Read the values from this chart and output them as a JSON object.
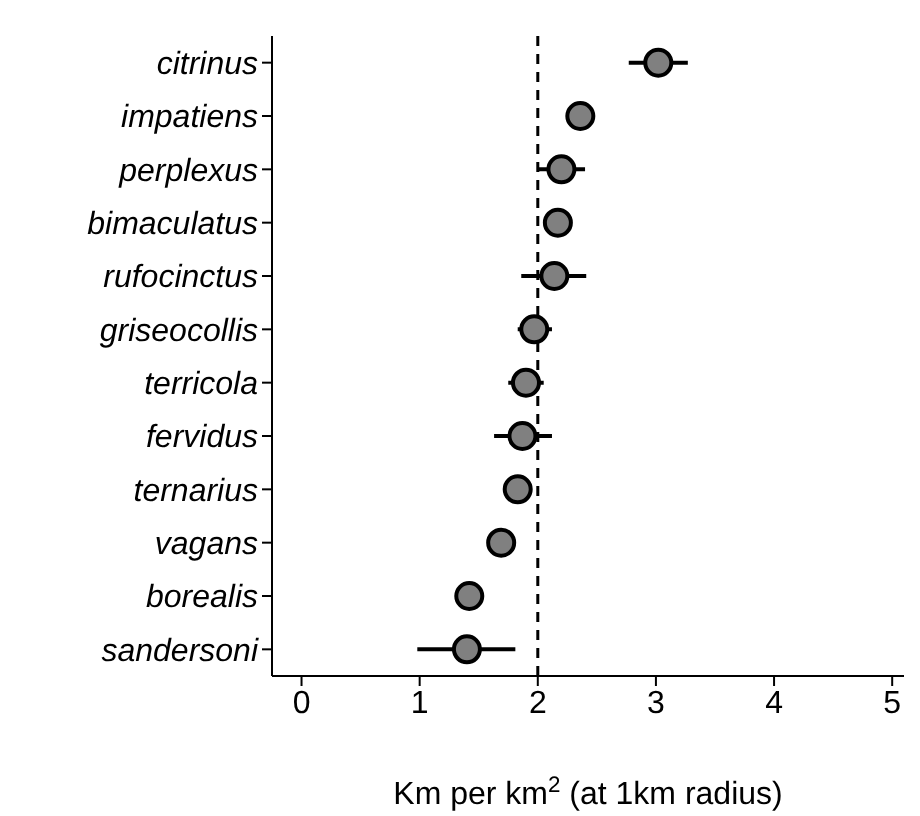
{
  "chart_data": {
    "type": "scatter",
    "orientation": "horizontal",
    "xlabel": "Km per km$^{2}$ (at 1km radius)",
    "categories": [
      "citrinus",
      "impatiens",
      "perplexus",
      "bimaculatus",
      "rufocinctus",
      "griseocollis",
      "terricola",
      "fervidus",
      "ternarius",
      "vagans",
      "borealis",
      "sandersoni"
    ],
    "values": [
      3.02,
      2.36,
      2.2,
      2.17,
      2.14,
      1.97,
      1.9,
      1.87,
      1.83,
      1.69,
      1.42,
      1.4
    ],
    "errors": [
      [
        2.77,
        3.27
      ],
      null,
      [
        2.0,
        2.4
      ],
      null,
      [
        1.86,
        2.41
      ],
      [
        1.83,
        2.12
      ],
      [
        1.75,
        2.05
      ],
      [
        1.63,
        2.12
      ],
      null,
      null,
      [
        1.32,
        1.53
      ],
      [
        0.98,
        1.81
      ]
    ],
    "color": "#808080",
    "marker": "circle",
    "xlim": [
      -0.25,
      5.1
    ],
    "xticks": [
      0,
      1,
      2,
      3,
      4,
      5
    ],
    "ref_lines": [
      {
        "axis": "x",
        "value": 2,
        "line_style": "dashed"
      }
    ],
    "grid": false,
    "legend": false
  }
}
